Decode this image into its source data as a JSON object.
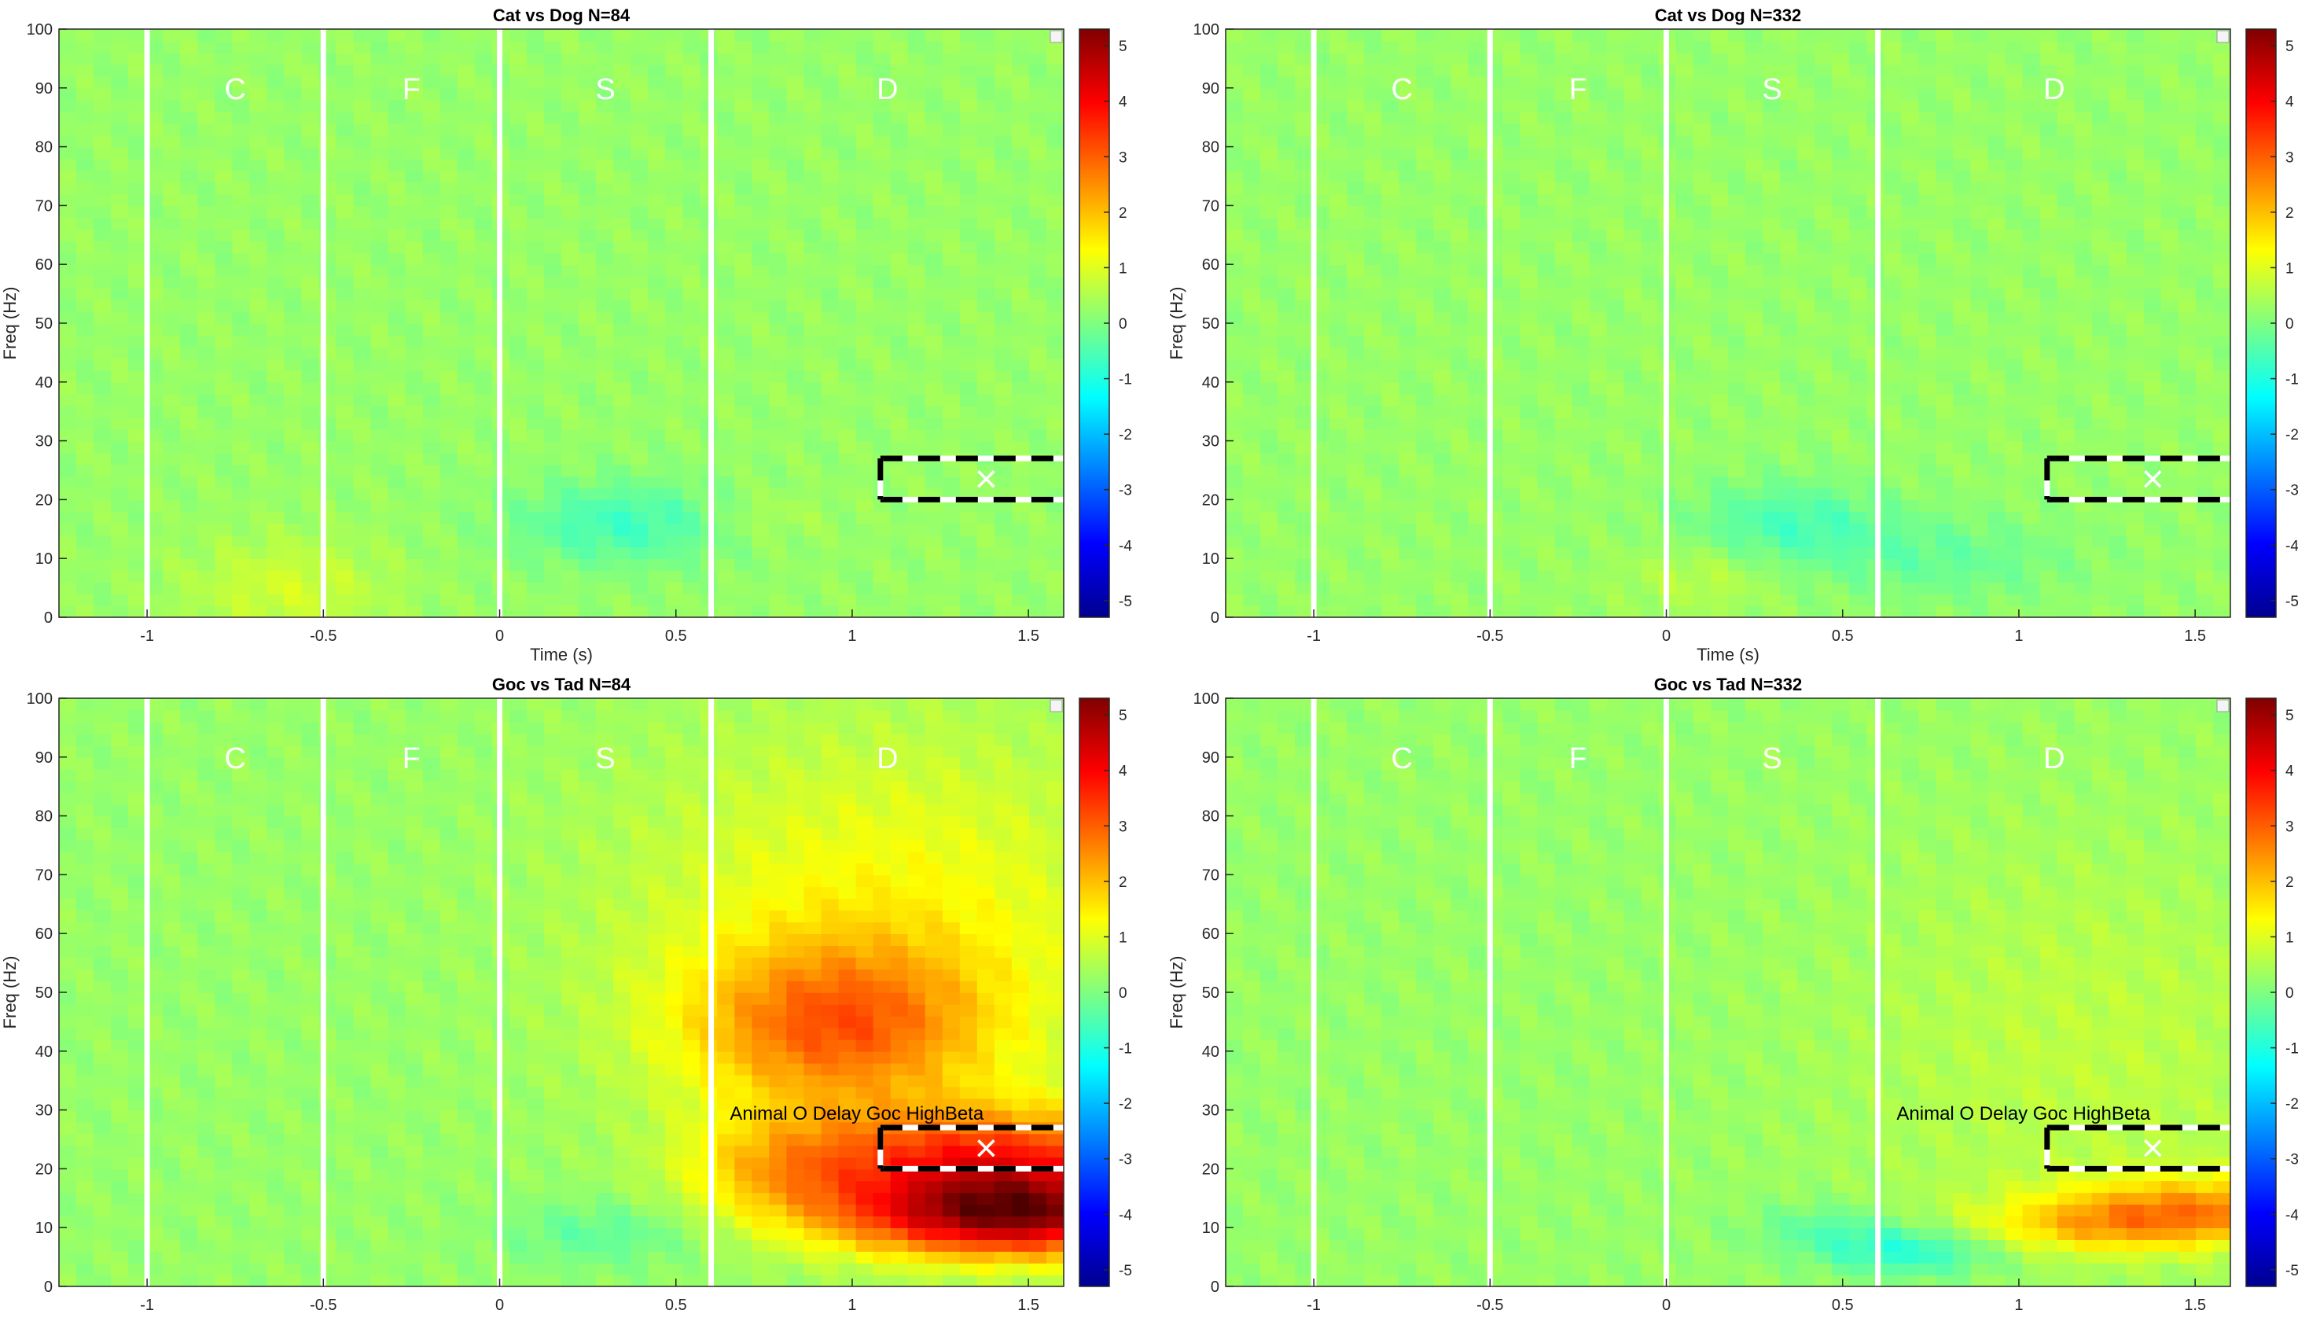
{
  "figure": {
    "panels": [
      {
        "title": "Cat vs Dog N=84",
        "xlabel": "Time (s)",
        "ylabel": "Freq (Hz)",
        "phase_labels": [
          "C",
          "F",
          "S",
          "D"
        ],
        "annotation": ""
      },
      {
        "title": "Cat vs Dog N=332",
        "xlabel": "Time (s)",
        "ylabel": "Freq (Hz)",
        "phase_labels": [
          "C",
          "F",
          "S",
          "D"
        ],
        "annotation": ""
      },
      {
        "title": "Goc vs Tad N=84",
        "xlabel": "Time (s)",
        "ylabel": "Freq (Hz)",
        "phase_labels": [
          "C",
          "F",
          "S",
          "D"
        ],
        "annotation": "Animal O Delay Goc HighBeta"
      },
      {
        "title": "Goc vs Tad N=332",
        "xlabel": "Time (s)",
        "ylabel": "Freq (Hz)",
        "phase_labels": [
          "C",
          "F",
          "S",
          "D"
        ],
        "annotation": "Animal O Delay Goc HighBeta"
      }
    ]
  },
  "chart_data": [
    {
      "type": "heatmap",
      "title": "Cat vs Dog N=84",
      "xlabel": "Time (s)",
      "ylabel": "Freq (Hz)",
      "xlim": [
        -1.25,
        1.6
      ],
      "ylim": [
        0,
        100
      ],
      "xticks": [
        -1,
        -0.5,
        0,
        0.5,
        1,
        1.5
      ],
      "yticks": [
        0,
        10,
        20,
        30,
        40,
        50,
        60,
        70,
        80,
        90,
        100
      ],
      "colormap": "jet",
      "clim": [
        -5.3,
        5.3
      ],
      "colorbar_ticks": [
        5,
        4,
        3,
        2,
        1,
        0,
        -1,
        -2,
        -3,
        -4,
        -5
      ],
      "event_lines_x": [
        -1,
        -0.5,
        0,
        0.6
      ],
      "phase_labels": [
        {
          "text": "C",
          "x": -0.75,
          "y": 90
        },
        {
          "text": "F",
          "x": -0.25,
          "y": 90
        },
        {
          "text": "S",
          "x": 0.3,
          "y": 90
        },
        {
          "text": "D",
          "x": 1.1,
          "y": 90
        }
      ],
      "roi": {
        "x": [
          1.08,
          1.6
        ],
        "y": [
          20,
          27
        ],
        "marker": {
          "x": 1.38,
          "y": 23.5
        }
      },
      "features": [
        {
          "x": 0.35,
          "y": 16,
          "sx": 0.22,
          "sy": 5,
          "amp": -0.9
        },
        {
          "x": -0.6,
          "y": 5,
          "sx": 0.2,
          "sy": 6,
          "amp": 0.6
        },
        {
          "x": 0.75,
          "y": 17,
          "sx": 0.12,
          "sy": 3,
          "amp": 0.3
        }
      ]
    },
    {
      "type": "heatmap",
      "title": "Cat vs Dog N=332",
      "xlabel": "Time (s)",
      "ylabel": "Freq (Hz)",
      "xlim": [
        -1.25,
        1.6
      ],
      "ylim": [
        0,
        100
      ],
      "xticks": [
        -1,
        -0.5,
        0,
        0.5,
        1,
        1.5
      ],
      "yticks": [
        0,
        10,
        20,
        30,
        40,
        50,
        60,
        70,
        80,
        90,
        100
      ],
      "colormap": "jet",
      "clim": [
        -5.3,
        5.3
      ],
      "colorbar_ticks": [
        5,
        4,
        3,
        2,
        1,
        0,
        -1,
        -2,
        -3,
        -4,
        -5
      ],
      "event_lines_x": [
        -1,
        -0.5,
        0,
        0.6
      ],
      "phase_labels": [
        {
          "text": "C",
          "x": -0.75,
          "y": 90
        },
        {
          "text": "F",
          "x": -0.25,
          "y": 90
        },
        {
          "text": "S",
          "x": 0.3,
          "y": 90
        },
        {
          "text": "D",
          "x": 1.1,
          "y": 90
        }
      ],
      "roi": {
        "x": [
          1.08,
          1.6
        ],
        "y": [
          20,
          27
        ],
        "marker": {
          "x": 1.38,
          "y": 23.5
        }
      },
      "features": [
        {
          "x": 0.35,
          "y": 16,
          "sx": 0.2,
          "sy": 5,
          "amp": -0.8
        },
        {
          "x": 0.8,
          "y": 10,
          "sx": 0.25,
          "sy": 5,
          "amp": -0.5
        },
        {
          "x": 0.1,
          "y": 7,
          "sx": 0.15,
          "sy": 4,
          "amp": 0.4
        }
      ]
    },
    {
      "type": "heatmap",
      "title": "Goc vs Tad N=84",
      "xlabel": "Time (s)",
      "ylabel": "Freq (Hz)",
      "xlim": [
        -1.25,
        1.6
      ],
      "ylim": [
        0,
        100
      ],
      "xticks": [
        -1,
        -0.5,
        0,
        0.5,
        1,
        1.5
      ],
      "yticks": [
        0,
        10,
        20,
        30,
        40,
        50,
        60,
        70,
        80,
        90,
        100
      ],
      "colormap": "jet",
      "clim": [
        -5.3,
        5.3
      ],
      "colorbar_ticks": [
        5,
        4,
        3,
        2,
        1,
        0,
        -1,
        -2,
        -3,
        -4,
        -5
      ],
      "event_lines_x": [
        -1,
        -0.5,
        0,
        0.6
      ],
      "phase_labels": [
        {
          "text": "C",
          "x": -0.75,
          "y": 90
        },
        {
          "text": "F",
          "x": -0.25,
          "y": 90
        },
        {
          "text": "S",
          "x": 0.3,
          "y": 90
        },
        {
          "text": "D",
          "x": 1.1,
          "y": 90
        }
      ],
      "roi": {
        "x": [
          1.08,
          1.6
        ],
        "y": [
          20,
          27
        ],
        "marker": {
          "x": 1.38,
          "y": 23.5
        }
      },
      "features": [
        {
          "x": 1.45,
          "y": 12,
          "sx": 0.35,
          "sy": 5,
          "amp": 4.6
        },
        {
          "x": 1.4,
          "y": 22,
          "sx": 0.35,
          "sy": 6,
          "amp": 3.0
        },
        {
          "x": 0.95,
          "y": 44,
          "sx": 0.3,
          "sy": 10,
          "amp": 2.2
        },
        {
          "x": 1.1,
          "y": 62,
          "sx": 0.5,
          "sy": 22,
          "amp": 1.1
        },
        {
          "x": 0.8,
          "y": 20,
          "sx": 0.2,
          "sy": 6,
          "amp": 1.3
        },
        {
          "x": 0.3,
          "y": 9,
          "sx": 0.2,
          "sy": 4,
          "amp": -0.6
        }
      ]
    },
    {
      "type": "heatmap",
      "title": "Goc vs Tad N=332",
      "xlabel": "Time (s)",
      "ylabel": "Freq (Hz)",
      "xlim": [
        -1.25,
        1.6
      ],
      "ylim": [
        0,
        100
      ],
      "xticks": [
        -1,
        -0.5,
        0,
        0.5,
        1,
        1.5
      ],
      "yticks": [
        0,
        10,
        20,
        30,
        40,
        50,
        60,
        70,
        80,
        90,
        100
      ],
      "colormap": "jet",
      "clim": [
        -5.3,
        5.3
      ],
      "colorbar_ticks": [
        5,
        4,
        3,
        2,
        1,
        0,
        -1,
        -2,
        -3,
        -4,
        -5
      ],
      "event_lines_x": [
        -1,
        -0.5,
        0,
        0.6
      ],
      "phase_labels": [
        {
          "text": "C",
          "x": -0.75,
          "y": 90
        },
        {
          "text": "F",
          "x": -0.25,
          "y": 90
        },
        {
          "text": "S",
          "x": 0.3,
          "y": 90
        },
        {
          "text": "D",
          "x": 1.1,
          "y": 90
        }
      ],
      "roi": {
        "x": [
          1.08,
          1.6
        ],
        "y": [
          20,
          27
        ],
        "marker": {
          "x": 1.38,
          "y": 23.5
        }
      },
      "features": [
        {
          "x": 1.5,
          "y": 13,
          "sx": 0.3,
          "sy": 4,
          "amp": 2.1
        },
        {
          "x": 1.2,
          "y": 10,
          "sx": 0.25,
          "sy": 3,
          "amp": 1.0
        },
        {
          "x": 0.7,
          "y": 6,
          "sx": 0.18,
          "sy": 3,
          "amp": -1.2
        },
        {
          "x": 0.45,
          "y": 10,
          "sx": 0.15,
          "sy": 3,
          "amp": -0.6
        },
        {
          "x": 1.2,
          "y": 40,
          "sx": 0.5,
          "sy": 25,
          "amp": 0.4
        }
      ]
    }
  ]
}
